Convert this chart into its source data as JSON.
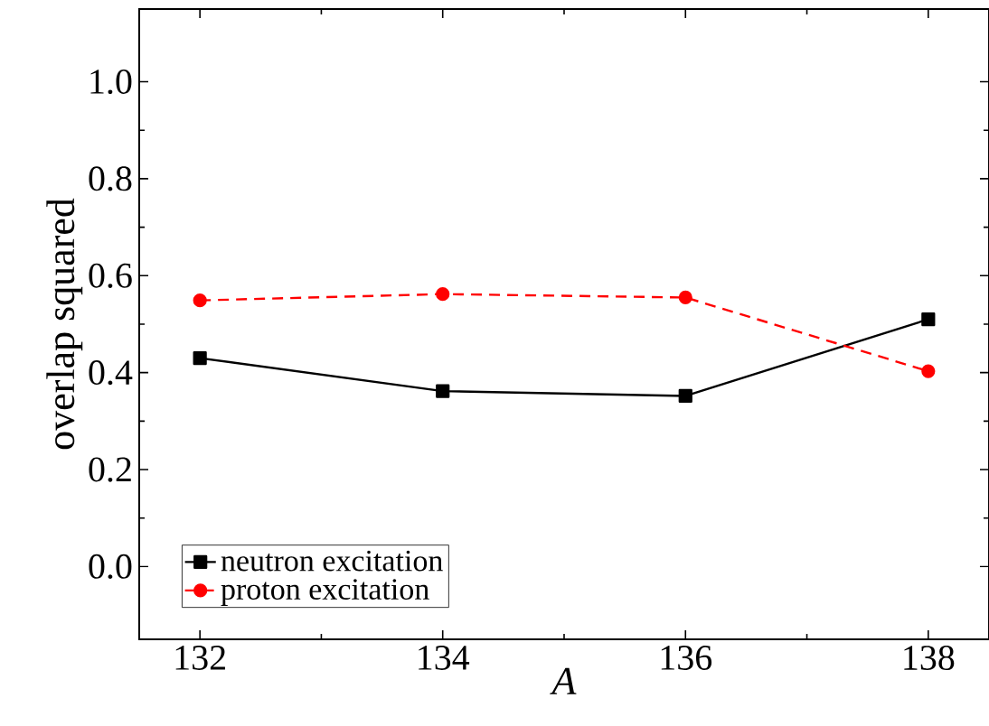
{
  "chart_data": {
    "type": "line",
    "xlabel": "A",
    "ylabel": "overlap squared",
    "x": [
      132,
      134,
      136,
      138
    ],
    "series": [
      {
        "name": "neutron excitation",
        "color": "#000000",
        "marker": "square",
        "line_style": "solid",
        "values": [
          0.43,
          0.362,
          0.352,
          0.51
        ]
      },
      {
        "name": "proton excitation",
        "color": "#ff0000",
        "marker": "circle",
        "line_style": "dashed",
        "values": [
          0.549,
          0.562,
          0.555,
          0.403
        ]
      }
    ],
    "xlim": [
      131.5,
      138.5
    ],
    "ylim": [
      -0.15,
      1.15
    ],
    "xticks": [
      132,
      134,
      136,
      138
    ],
    "yticks": [
      {
        "value": 0,
        "label": "0.0"
      },
      {
        "value": 0.2,
        "label": "0.2"
      },
      {
        "value": 0.4,
        "label": "0.4"
      },
      {
        "value": 0.6,
        "label": "0.6"
      },
      {
        "value": 0.8,
        "label": "0.8"
      },
      {
        "value": 1,
        "label": "1.0"
      }
    ],
    "grid": false,
    "legend": "bottom left"
  }
}
